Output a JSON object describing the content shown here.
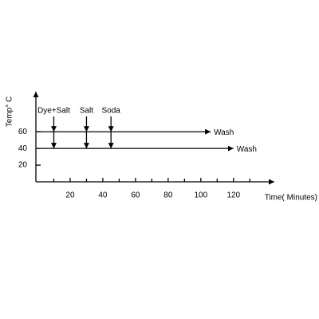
{
  "chart_data": {
    "type": "line",
    "xlabel": "Time( Minutes)",
    "ylabel": "Temp° C",
    "xlim": [
      0,
      145
    ],
    "ylim": [
      0,
      108
    ],
    "xticks": [
      20,
      40,
      60,
      80,
      100,
      120
    ],
    "xminor_ticks": [
      10,
      30,
      50,
      70,
      90,
      110,
      130
    ],
    "yticks": [
      20,
      40,
      60
    ],
    "series": [
      {
        "name": "Wash",
        "color": "#000000",
        "x": [
          0,
          106
        ],
        "values": [
          60,
          60
        ]
      },
      {
        "name": "Wash",
        "color": "#000000",
        "x": [
          0,
          120
        ],
        "values": [
          40,
          40
        ]
      }
    ],
    "annotations": [
      {
        "text": "Dye+Salt",
        "x": 10,
        "targets": [
          60,
          40
        ]
      },
      {
        "text": "Salt",
        "x": 30,
        "targets": [
          60,
          40
        ]
      },
      {
        "text": "Soda",
        "x": 45,
        "targets": [
          60,
          40
        ]
      }
    ]
  }
}
